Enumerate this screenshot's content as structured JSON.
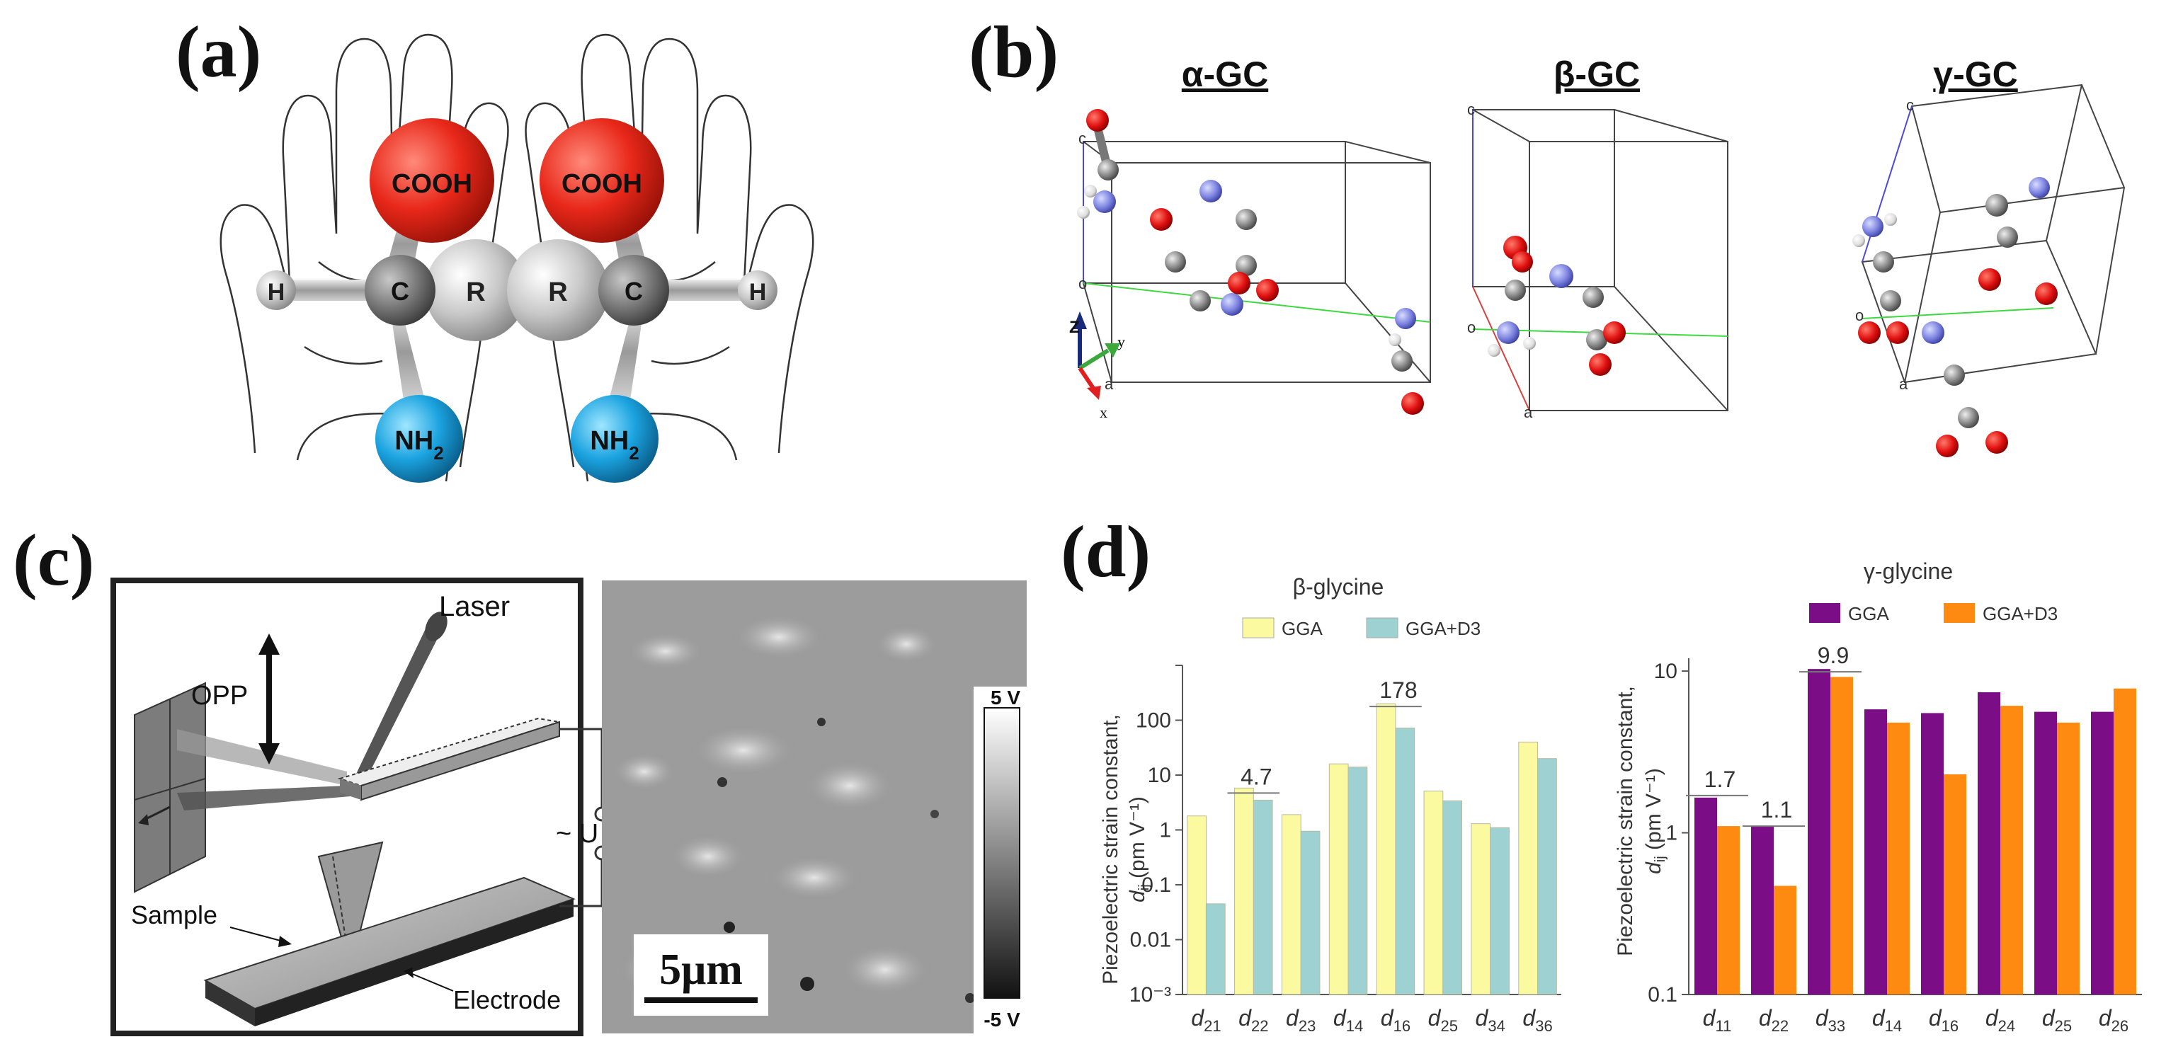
{
  "panels": {
    "a": "(a)",
    "b": "(b)",
    "c": "(c)",
    "d": "(d)"
  },
  "panel_a": {
    "cooh": "COOH",
    "c": "C",
    "r": "R",
    "h": "H",
    "nh2_base": "NH",
    "nh2_sub": "2"
  },
  "panel_b": {
    "titles": [
      "α-GC",
      "β-GC",
      "γ-GC"
    ],
    "axis_labels": {
      "z": "Z",
      "y": "y",
      "x": "x"
    },
    "cell_labels": [
      "c",
      "o",
      "a"
    ]
  },
  "panel_c": {
    "laser": "Laser",
    "opp": "OPP",
    "u": "~ U",
    "sample": "Sample",
    "electrode": "Electrode",
    "scale_bar": "5μm",
    "colorbar_top": "5 V",
    "colorbar_bottom": "-5 V"
  },
  "chart_data": [
    {
      "type": "bar",
      "title": "β-glycine",
      "ylabel": "Piezoelectric strain constant,",
      "ylabel_var": "d",
      "ylabel_sub": "ij",
      "ylabel_unit": "(pm V⁻¹)",
      "yscale": "log",
      "ylim": [
        0.001,
        1000
      ],
      "yticks": [
        "10⁻³",
        "0.01",
        "0.1",
        "1",
        "10",
        "100"
      ],
      "categories": [
        "21",
        "22",
        "23",
        "14",
        "16",
        "25",
        "34",
        "36"
      ],
      "category_var": "d",
      "series": [
        {
          "name": "GGA",
          "color": "#fbfaa0",
          "values": [
            1.8,
            5.8,
            1.9,
            16,
            200,
            5.1,
            1.3,
            40
          ]
        },
        {
          "name": "GGA+D3",
          "color": "#9ed2d2",
          "values": [
            0.045,
            3.5,
            0.95,
            14,
            72,
            3.4,
            1.1,
            20
          ]
        }
      ],
      "annotations": [
        {
          "text": "4.7",
          "category_index": 1,
          "value": 4.7
        },
        {
          "text": "178",
          "category_index": 4,
          "value": 178
        }
      ],
      "legend": "top"
    },
    {
      "type": "bar",
      "title": "γ-glycine",
      "ylabel": "Piezoelectric strain constant,",
      "ylabel_var": "d",
      "ylabel_sub": "ij",
      "ylabel_unit": "(pm V⁻¹)",
      "yscale": "log",
      "ylim": [
        0.1,
        12
      ],
      "yticks": [
        "0.1",
        "1",
        "10"
      ],
      "categories": [
        "11",
        "22",
        "33",
        "14",
        "16",
        "24",
        "25",
        "26"
      ],
      "category_var": "d",
      "series": [
        {
          "name": "GGA",
          "color": "#7b0e86",
          "values": [
            1.65,
            1.1,
            10.3,
            5.8,
            5.5,
            7.4,
            5.6,
            5.6
          ]
        },
        {
          "name": "GGA+D3",
          "color": "#ff8a11",
          "values": [
            1.1,
            0.47,
            9.2,
            4.8,
            2.3,
            6.1,
            4.8,
            7.8
          ]
        }
      ],
      "annotations": [
        {
          "text": "1.7",
          "category_index": 0,
          "value": 1.7
        },
        {
          "text": "1.1",
          "category_index": 1,
          "value": 1.1
        },
        {
          "text": "9.9",
          "category_index": 2,
          "value": 9.9
        }
      ],
      "legend": "top"
    }
  ]
}
